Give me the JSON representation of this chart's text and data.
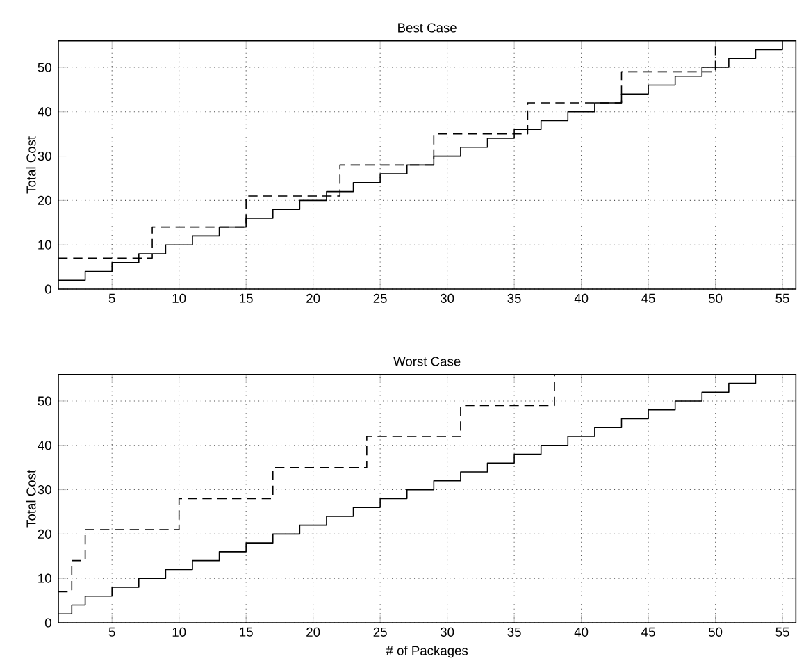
{
  "chart_data": [
    {
      "type": "step",
      "title": "Best Case",
      "ylabel": "Total Cost",
      "xlim": [
        1,
        56
      ],
      "ylim": [
        0,
        56
      ],
      "xticks": [
        5,
        10,
        15,
        20,
        25,
        30,
        35,
        40,
        45,
        50,
        55
      ],
      "yticks": [
        0,
        10,
        20,
        30,
        40,
        50
      ],
      "grid": true,
      "series": [
        {
          "color": "#000000",
          "line_style": "solid",
          "x": [
            1,
            3,
            5,
            7,
            9,
            11,
            13,
            15,
            17,
            19,
            21,
            23,
            25,
            27,
            29,
            31,
            33,
            35,
            37,
            39,
            41,
            43,
            45,
            47,
            49,
            51,
            53,
            55
          ],
          "values": [
            2,
            4,
            6,
            8,
            10,
            12,
            14,
            16,
            18,
            20,
            22,
            24,
            26,
            28,
            30,
            32,
            34,
            36,
            38,
            40,
            42,
            44,
            46,
            48,
            50,
            52,
            54,
            56
          ]
        },
        {
          "color": "#000000",
          "line_style": "dashed",
          "x": [
            1,
            8,
            15,
            22,
            29,
            36,
            43,
            50
          ],
          "values": [
            7,
            14,
            21,
            28,
            35,
            42,
            49,
            56
          ]
        }
      ]
    },
    {
      "type": "step",
      "title": "Worst Case",
      "xlabel": "# of Packages",
      "ylabel": "Total Cost",
      "xlim": [
        1,
        56
      ],
      "ylim": [
        0,
        56
      ],
      "xticks": [
        5,
        10,
        15,
        20,
        25,
        30,
        35,
        40,
        45,
        50,
        55
      ],
      "yticks": [
        0,
        10,
        20,
        30,
        40,
        50
      ],
      "grid": true,
      "series": [
        {
          "color": "#000000",
          "line_style": "solid",
          "x": [
            1,
            2,
            3,
            5,
            7,
            9,
            11,
            13,
            15,
            17,
            19,
            21,
            23,
            25,
            27,
            29,
            31,
            33,
            35,
            37,
            39,
            41,
            43,
            45,
            47,
            49,
            51,
            53
          ],
          "values": [
            2,
            4,
            6,
            8,
            10,
            12,
            14,
            16,
            18,
            20,
            22,
            24,
            26,
            28,
            30,
            32,
            34,
            36,
            38,
            40,
            42,
            44,
            46,
            48,
            50,
            52,
            54,
            56
          ]
        },
        {
          "color": "#000000",
          "line_style": "dashed",
          "x": [
            1,
            2,
            3,
            10,
            17,
            24,
            31,
            38
          ],
          "values": [
            7,
            14,
            21,
            28,
            35,
            42,
            49,
            56
          ]
        }
      ]
    }
  ]
}
